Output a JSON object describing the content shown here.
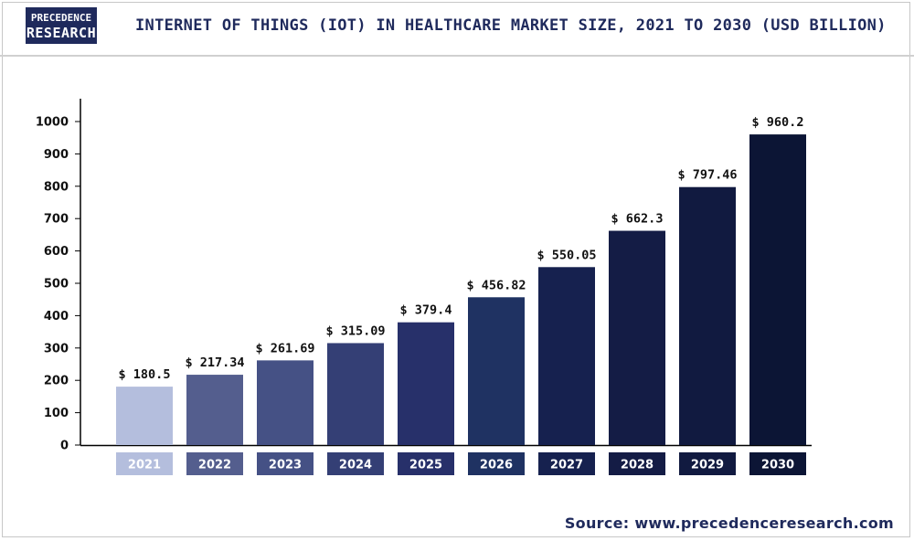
{
  "header": {
    "logo_line1": "PRECEDENCE",
    "logo_line2": "RESEARCH",
    "title": "INTERNET OF THINGS (IOT) IN HEALTHCARE MARKET SIZE, 2021 TO 2030 (USD BILLION)"
  },
  "footer": {
    "source": "Source: www.precedenceresearch.com"
  },
  "colors": {
    "brand": "#1f2a5c",
    "bars": [
      "#b4bedd",
      "#545e8e",
      "#455185",
      "#343f75",
      "#27306a",
      "#1f3262",
      "#16214f",
      "#141c45",
      "#111a40",
      "#0c1535"
    ]
  },
  "chart_data": {
    "type": "bar",
    "title": "INTERNET OF THINGS (IOT) IN HEALTHCARE MARKET SIZE, 2021 TO 2030 (USD BILLION)",
    "xlabel": "",
    "ylabel": "",
    "categories": [
      "2021",
      "2022",
      "2023",
      "2024",
      "2025",
      "2026",
      "2027",
      "2028",
      "2029",
      "2030"
    ],
    "values": [
      180.5,
      217.34,
      261.69,
      315.09,
      379.4,
      456.82,
      550.05,
      662.3,
      797.46,
      960.2
    ],
    "value_labels": [
      "$ 180.5",
      "$ 217.34",
      "$ 261.69",
      "$ 315.09",
      "$ 379.4",
      "$ 456.82",
      "$ 550.05",
      "$ 662.3",
      "$ 797.46",
      "$ 960.2"
    ],
    "ylim": [
      0,
      1000
    ],
    "yticks": [
      0,
      100,
      200,
      300,
      400,
      500,
      600,
      700,
      800,
      900,
      1000
    ],
    "grid": false,
    "legend": "none"
  }
}
